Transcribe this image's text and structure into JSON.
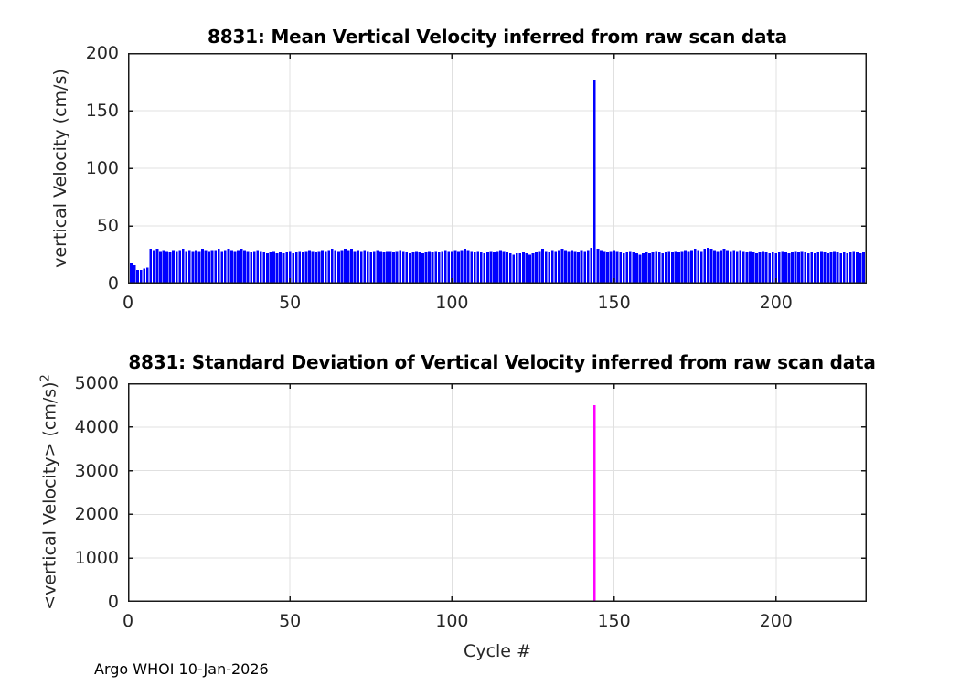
{
  "figure": {
    "footer": "Argo WHOI 10-Jan-2026",
    "xlabel": "Cycle #"
  },
  "colors": {
    "mean_bar": "#0000FF",
    "std_bar": "#FF00FF",
    "grid": "#E0E0E0",
    "axis": "#1A1A1A",
    "tick_text": "#262626"
  },
  "chart_data": [
    {
      "type": "bar",
      "title": "8831: Mean Vertical Velocity inferred from raw scan data",
      "ylabel": "vertical Velocity (cm/s)",
      "xlabel": "",
      "bar_color": "#0000FF",
      "grid": true,
      "xlim": [
        0,
        228
      ],
      "ylim": [
        0,
        200
      ],
      "xticks": [
        0,
        50,
        100,
        150,
        200
      ],
      "yticks": [
        0,
        50,
        100,
        150,
        200
      ],
      "x_start_cycle": 1,
      "spike": {
        "cycle": 144,
        "value": 177
      },
      "values": [
        18,
        16,
        12,
        12,
        13,
        14,
        30,
        29,
        30,
        28,
        29,
        28,
        27,
        29,
        28,
        29,
        30,
        28,
        29,
        28,
        29,
        28,
        30,
        29,
        28,
        29,
        29,
        30,
        28,
        29,
        30,
        29,
        28,
        29,
        30,
        29,
        28,
        27,
        28,
        29,
        28,
        27,
        26,
        27,
        28,
        26,
        27,
        26,
        27,
        28,
        26,
        27,
        28,
        27,
        28,
        29,
        28,
        27,
        28,
        29,
        28,
        29,
        30,
        29,
        28,
        29,
        30,
        29,
        30,
        28,
        29,
        28,
        29,
        28,
        27,
        28,
        29,
        28,
        27,
        28,
        28,
        27,
        28,
        29,
        28,
        27,
        26,
        27,
        28,
        27,
        26,
        27,
        28,
        27,
        28,
        27,
        28,
        29,
        28,
        28,
        29,
        28,
        29,
        30,
        29,
        28,
        27,
        28,
        27,
        26,
        27,
        28,
        27,
        28,
        29,
        28,
        27,
        26,
        25,
        26,
        26,
        27,
        26,
        25,
        26,
        27,
        28,
        30,
        28,
        27,
        29,
        28,
        29,
        30,
        29,
        28,
        29,
        28,
        27,
        29,
        28,
        29,
        31,
        177,
        30,
        29,
        28,
        27,
        28,
        29,
        28,
        27,
        26,
        27,
        28,
        27,
        26,
        25,
        26,
        27,
        26,
        27,
        28,
        27,
        26,
        27,
        28,
        27,
        28,
        27,
        28,
        29,
        28,
        29,
        30,
        29,
        28,
        30,
        31,
        30,
        29,
        28,
        29,
        30,
        29,
        28,
        29,
        28,
        29,
        28,
        27,
        28,
        27,
        26,
        27,
        28,
        27,
        26,
        27,
        26,
        27,
        28,
        27,
        26,
        27,
        28,
        27,
        28,
        27,
        26,
        27,
        26,
        27,
        28,
        27,
        26,
        27,
        28,
        27,
        26,
        27,
        26,
        27,
        28,
        27,
        26,
        27
      ]
    },
    {
      "type": "bar",
      "title": "8831: Standard Deviation of Vertical Velocity inferred from raw scan data",
      "ylabel": "<vertical Velocity> (cm/s)",
      "ylabel_sup": "2",
      "xlabel": "Cycle #",
      "bar_color": "#FF00FF",
      "grid": true,
      "xlim": [
        0,
        228
      ],
      "ylim": [
        0,
        5000
      ],
      "xticks": [
        0,
        50,
        100,
        150,
        200
      ],
      "yticks": [
        0,
        1000,
        2000,
        3000,
        4000,
        5000
      ],
      "x_start_cycle": 1,
      "spike": {
        "cycle": 144,
        "value": 4500
      },
      "values": [
        0,
        0,
        0,
        0,
        0,
        0,
        0,
        0,
        0,
        0,
        0,
        0,
        0,
        0,
        0,
        0,
        0,
        0,
        0,
        0,
        0,
        0,
        0,
        0,
        0,
        0,
        0,
        0,
        0,
        0,
        0,
        0,
        0,
        0,
        0,
        0,
        0,
        0,
        0,
        0,
        0,
        0,
        0,
        0,
        0,
        0,
        0,
        0,
        0,
        0,
        0,
        0,
        0,
        0,
        0,
        0,
        0,
        0,
        0,
        0,
        0,
        0,
        0,
        0,
        0,
        0,
        0,
        0,
        0,
        0,
        0,
        0,
        0,
        0,
        0,
        0,
        0,
        0,
        0,
        0,
        0,
        0,
        0,
        0,
        0,
        0,
        0,
        0,
        0,
        0,
        0,
        0,
        0,
        0,
        0,
        0,
        0,
        0,
        0,
        0,
        0,
        0,
        0,
        0,
        0,
        0,
        0,
        0,
        0,
        0,
        0,
        0,
        0,
        0,
        0,
        0,
        0,
        0,
        0,
        0,
        0,
        0,
        0,
        0,
        0,
        0,
        0,
        0,
        0,
        0,
        0,
        0,
        0,
        0,
        0,
        0,
        0,
        0,
        0,
        0,
        0,
        0,
        0,
        4500,
        0,
        0,
        0,
        0,
        0,
        0,
        0,
        0,
        0,
        0,
        0,
        0,
        0,
        0,
        0,
        0,
        0,
        0,
        0,
        0,
        0,
        0,
        0,
        0,
        0,
        0,
        0,
        0,
        0,
        0,
        0,
        0,
        0,
        0,
        0,
        0,
        0,
        0,
        0,
        0,
        0,
        0,
        0,
        0,
        0,
        0,
        0,
        0,
        0,
        0,
        0,
        0,
        0,
        0,
        0,
        0,
        0,
        0,
        0,
        0,
        0,
        0,
        0,
        0,
        0,
        0,
        0,
        0,
        0,
        0,
        0,
        0,
        0,
        0,
        0,
        0,
        0,
        0,
        0,
        0,
        0,
        0,
        0
      ]
    }
  ]
}
